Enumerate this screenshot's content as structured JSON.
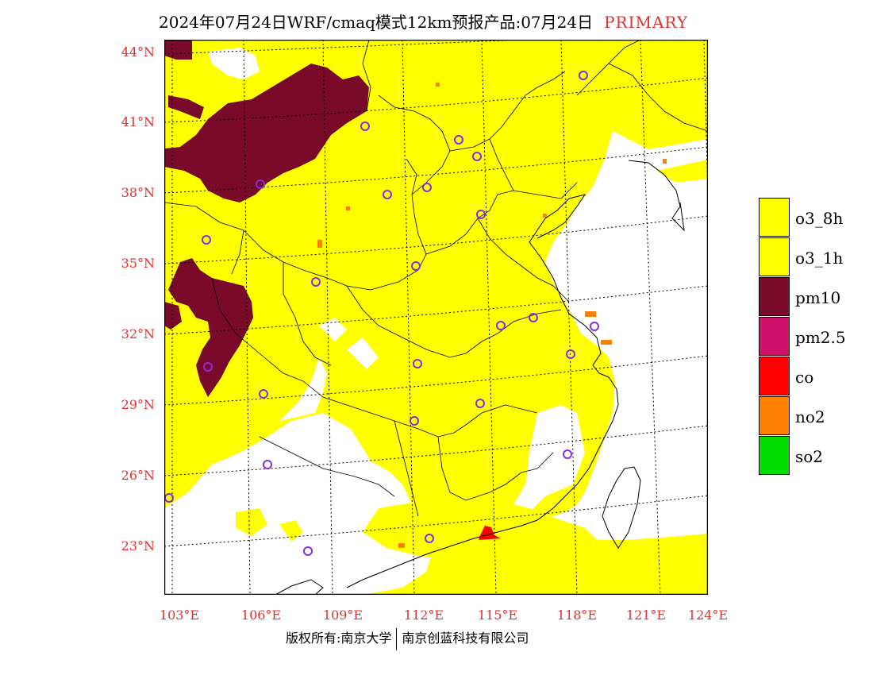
{
  "title": {
    "text": "2024年07月24日WRF/cmaq模式12km预报产品:07月24日",
    "tag": "PRIMARY"
  },
  "axes": {
    "lat_labels": [
      "44°N",
      "41°N",
      "38°N",
      "35°N",
      "32°N",
      "29°N",
      "26°N",
      "23°N"
    ],
    "lon_labels": [
      "103°E",
      "106°E",
      "109°E",
      "112°E",
      "115°E",
      "118°E",
      "121°E",
      "124°E"
    ]
  },
  "legend": {
    "items": [
      {
        "label": "o3_8h",
        "color": "#ffff00"
      },
      {
        "label": "o3_1h",
        "color": "#ffff00"
      },
      {
        "label": "pm10",
        "color": "#7a0a2a"
      },
      {
        "label": "pm2.5",
        "color": "#d0106a"
      },
      {
        "label": "co",
        "color": "#ff0000"
      },
      {
        "label": "no2",
        "color": "#ff8000"
      },
      {
        "label": "so2",
        "color": "#00dd00"
      }
    ]
  },
  "footer": {
    "left": "版权所有:南京大学",
    "right": "南京创蓝科技有限公司"
  },
  "colors": {
    "label_red": "#e03030",
    "o3": "#ffff00",
    "pm10": "#7a0a2a",
    "station_ring": "#8a2be2"
  },
  "map": {
    "dominant_pollutant_layer": [
      "o3",
      "pm10",
      "no2",
      "co"
    ],
    "stations_marked": true
  }
}
